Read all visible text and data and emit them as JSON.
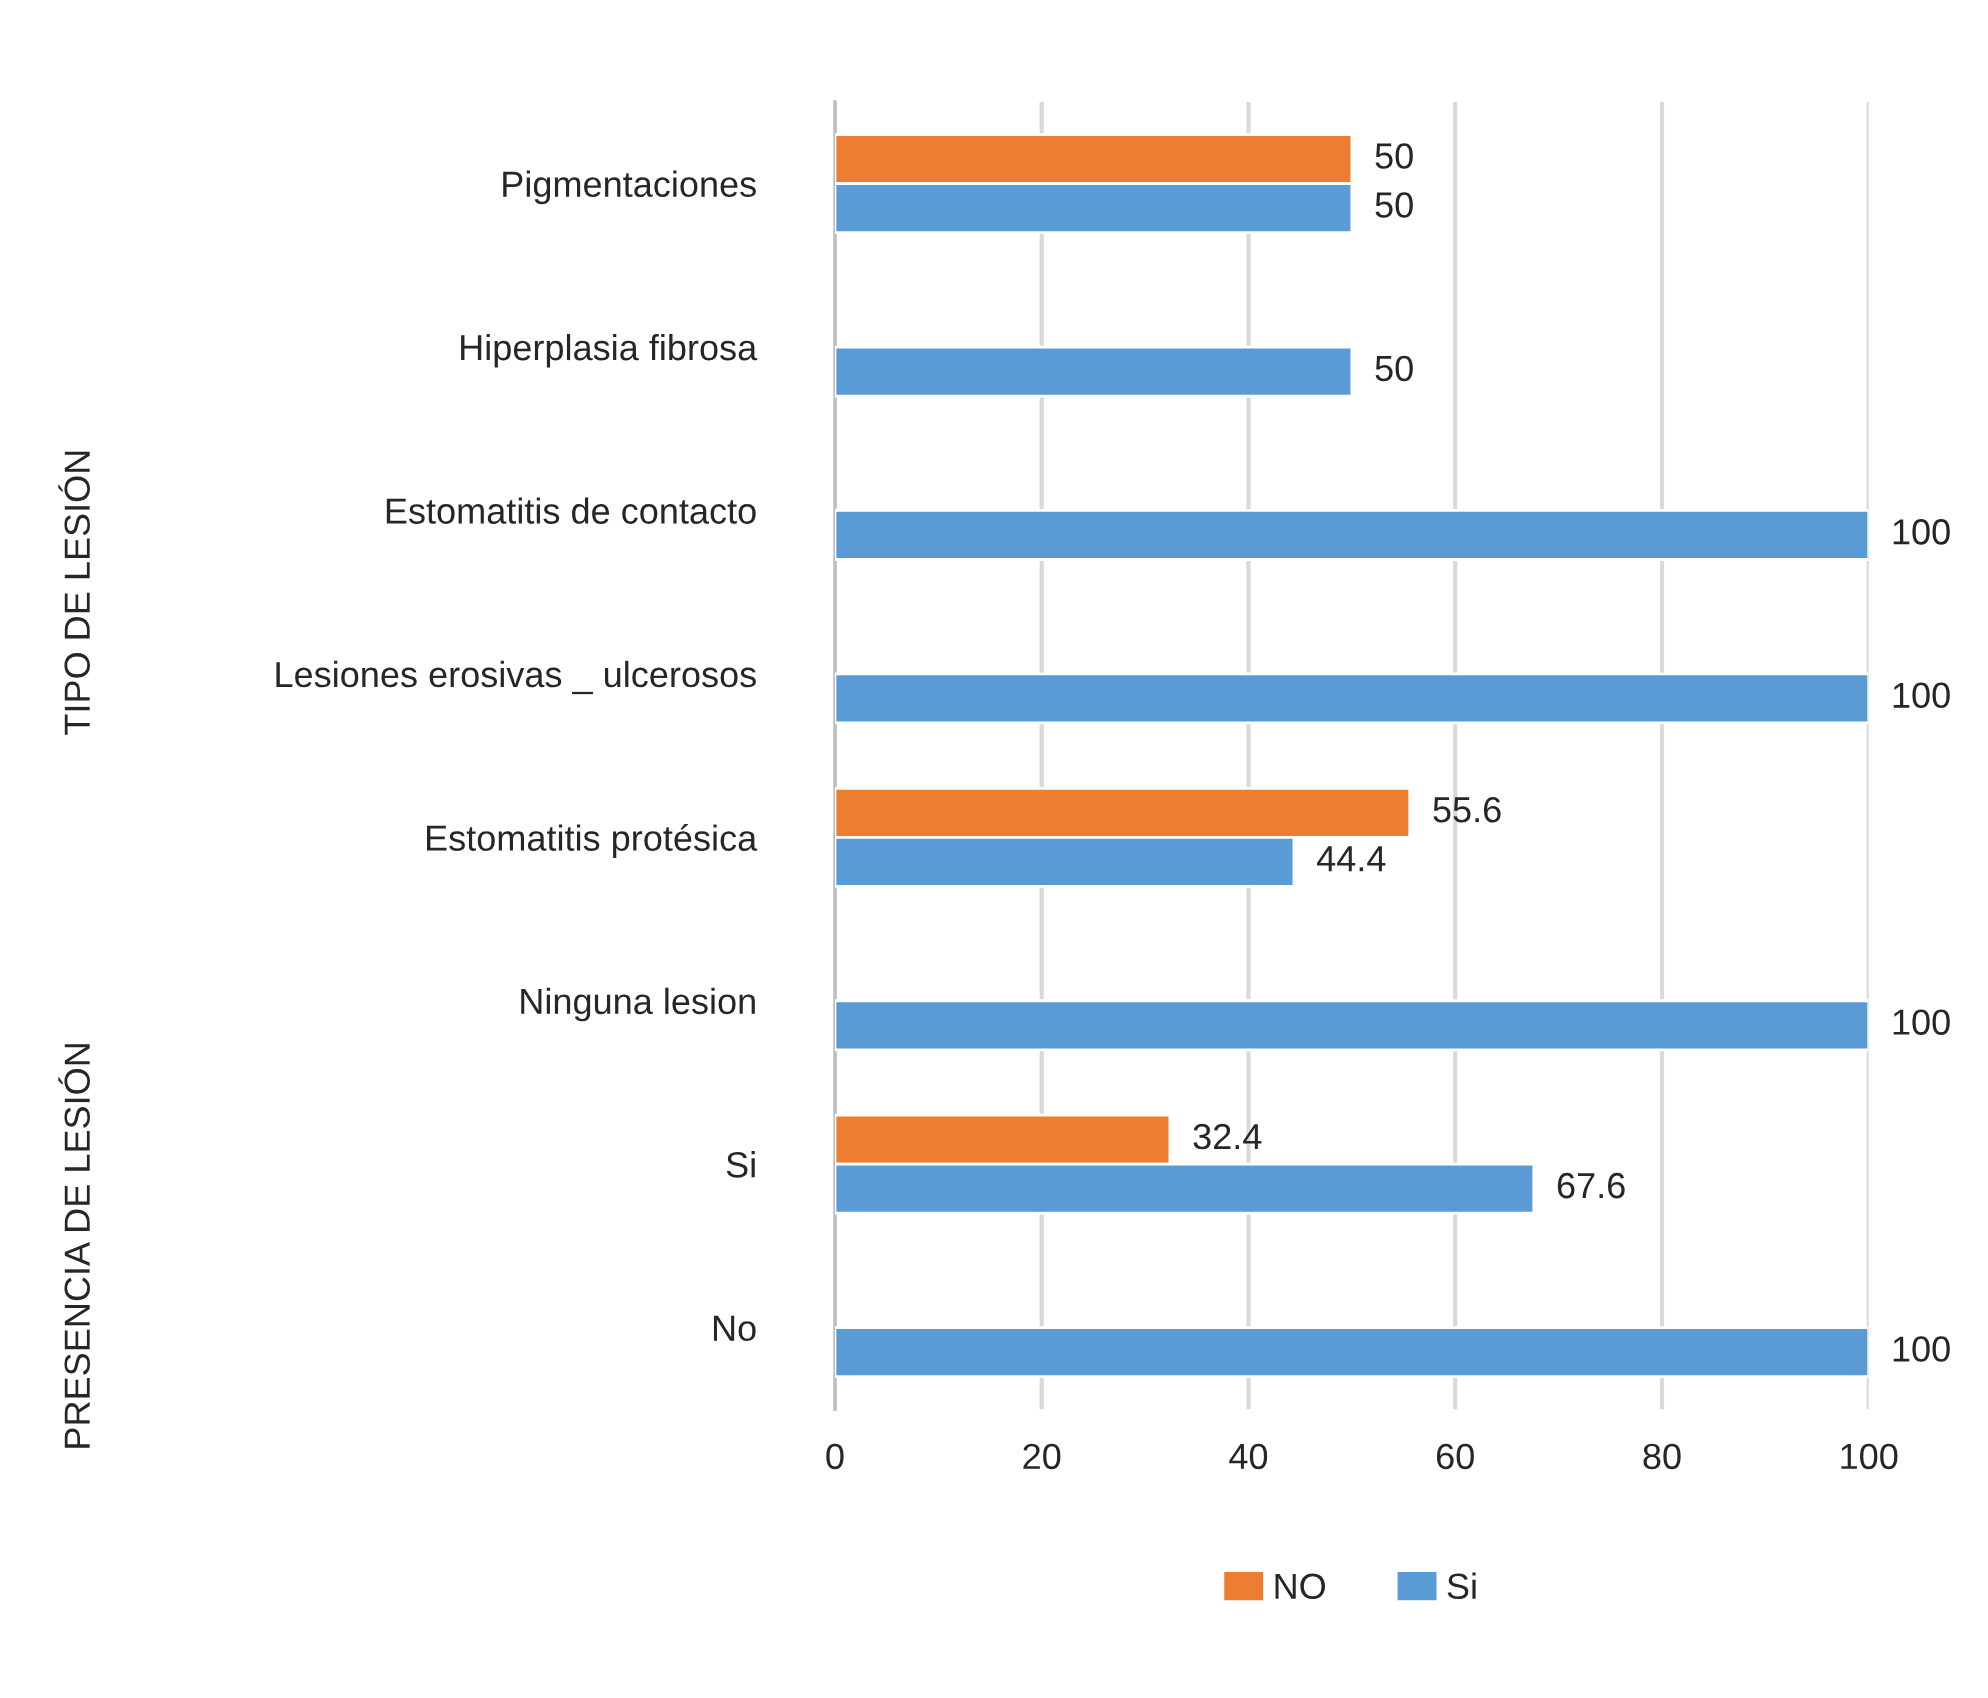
{
  "chart_data": {
    "type": "bar",
    "orientation": "horizontal",
    "categories": [
      "Pigmentaciones",
      "Hiperplasia fibrosa",
      "Estomatitis de contacto",
      "Lesiones erosivas _ ulcerosos",
      "Estomatitis protésica",
      "Ninguna lesion",
      "Si",
      "No"
    ],
    "series": [
      {
        "name": "NO",
        "color": "#ed7d31",
        "values": [
          50,
          null,
          null,
          null,
          55.6,
          null,
          32.4,
          null
        ]
      },
      {
        "name": "Si",
        "color": "#5b9bd5",
        "values": [
          50,
          50,
          100,
          100,
          44.4,
          100,
          67.6,
          100
        ]
      }
    ],
    "xlim": [
      0,
      100
    ],
    "xticks": [
      0,
      20,
      40,
      60,
      80,
      100
    ],
    "grid": "x",
    "legend": "bottom",
    "data_labels": true,
    "annotations": [
      "TIPO DE LESIÓN",
      "PRESENCIA DE LESIÓN"
    ]
  }
}
